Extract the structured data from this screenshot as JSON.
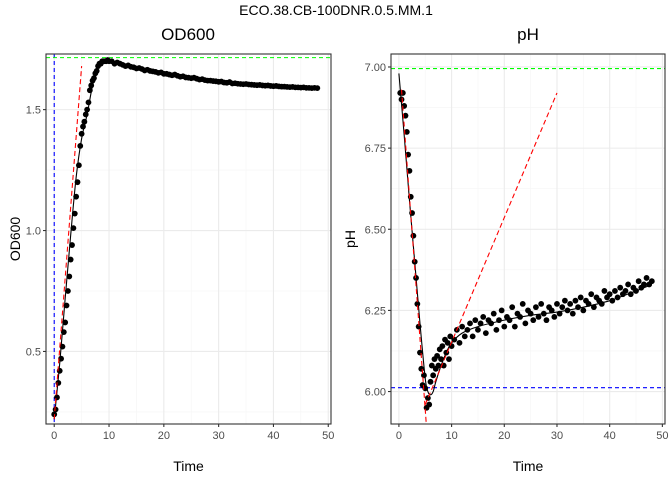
{
  "title": "ECO.38.CB-100DNR.0.5.MM.1",
  "colors": {
    "points": "#000000",
    "fit": "#000000",
    "tangent": "#ff0000",
    "hline_max": "#00ff00",
    "ref_line": "#0000ff",
    "grid_major": "#ebebeb",
    "grid_minor": "#f5f5f5",
    "panel_border": "#333333"
  },
  "chart_data": [
    {
      "type": "scatter",
      "title": "OD600",
      "xlabel": "Time",
      "ylabel": "OD600",
      "xlim": [
        -1.5,
        50.5
      ],
      "ylim": [
        0.2,
        1.73
      ],
      "xticks": [
        0,
        10,
        20,
        30,
        40,
        50
      ],
      "xtick_labels": [
        "0",
        "10",
        "20",
        "30",
        "40",
        "50"
      ],
      "yticks": [
        0.5,
        1.0,
        1.5
      ],
      "ytick_labels": [
        "0.5",
        "1.0",
        "1.5"
      ],
      "grid": true,
      "hline_max": 1.715,
      "vline": 0,
      "tangent_line": {
        "x": [
          0,
          5
        ],
        "y": [
          0.22,
          1.68
        ]
      },
      "fit_curve": {
        "x": [
          0,
          1,
          2,
          3,
          4,
          5,
          6,
          7,
          8,
          9,
          10,
          12,
          15,
          20,
          25,
          30,
          35,
          40,
          45,
          48
        ],
        "y": [
          0.22,
          0.45,
          0.72,
          0.98,
          1.22,
          1.38,
          1.48,
          1.6,
          1.67,
          1.695,
          1.7,
          1.69,
          1.675,
          1.65,
          1.63,
          1.615,
          1.605,
          1.6,
          1.595,
          1.59
        ]
      },
      "series": [
        {
          "x": [
            0,
            0.25,
            0.5,
            0.75,
            1.0,
            1.25,
            1.5,
            1.75,
            2.0,
            2.25,
            2.5,
            2.75,
            3.0,
            3.25,
            3.5,
            3.75,
            4.0,
            4.25,
            4.5,
            4.75,
            5.0,
            5.25,
            5.5,
            5.75,
            6.0,
            6.25,
            6.5,
            6.75,
            7.0,
            7.25,
            7.5,
            7.75,
            8.0,
            8.25,
            8.5,
            8.75,
            9.0,
            9.25,
            9.5,
            9.75,
            10.0,
            10.5,
            11.0,
            11.5,
            12.0,
            12.5,
            13.0,
            13.5,
            14.0,
            14.5,
            15.0,
            15.5,
            16.0,
            16.5,
            17.0,
            17.5,
            18.0,
            18.5,
            19.0,
            19.5,
            20.0,
            20.5,
            21.0,
            21.5,
            22.0,
            22.5,
            23.0,
            23.5,
            24.0,
            24.5,
            25.0,
            25.5,
            26.0,
            26.5,
            27.0,
            27.5,
            28.0,
            28.5,
            29.0,
            29.5,
            30.0,
            30.5,
            31.0,
            31.5,
            32.0,
            32.5,
            33.0,
            33.5,
            34.0,
            34.5,
            35.0,
            35.5,
            36.0,
            36.5,
            37.0,
            37.5,
            38.0,
            38.5,
            39.0,
            39.5,
            40.0,
            40.5,
            41.0,
            41.5,
            42.0,
            42.5,
            43.0,
            43.5,
            44.0,
            44.5,
            45.0,
            45.5,
            46.0,
            46.5,
            47.0,
            47.5,
            48.0
          ],
          "y": [
            0.24,
            0.26,
            0.31,
            0.37,
            0.42,
            0.47,
            0.52,
            0.58,
            0.62,
            0.69,
            0.75,
            0.81,
            0.88,
            0.94,
            1.01,
            1.07,
            1.14,
            1.2,
            1.27,
            1.35,
            1.4,
            1.43,
            1.45,
            1.48,
            1.5,
            1.53,
            1.58,
            1.6,
            1.62,
            1.63,
            1.65,
            1.66,
            1.68,
            1.69,
            1.69,
            1.7,
            1.7,
            1.7,
            1.7,
            1.705,
            1.7,
            1.7,
            1.69,
            1.695,
            1.69,
            1.685,
            1.68,
            1.683,
            1.677,
            1.675,
            1.67,
            1.672,
            1.668,
            1.662,
            1.665,
            1.66,
            1.658,
            1.656,
            1.652,
            1.654,
            1.648,
            1.648,
            1.645,
            1.642,
            1.645,
            1.64,
            1.636,
            1.638,
            1.633,
            1.632,
            1.63,
            1.632,
            1.628,
            1.624,
            1.626,
            1.622,
            1.62,
            1.62,
            1.618,
            1.617,
            1.615,
            1.616,
            1.612,
            1.611,
            1.614,
            1.608,
            1.609,
            1.607,
            1.606,
            1.605,
            1.606,
            1.604,
            1.603,
            1.602,
            1.601,
            1.602,
            1.6,
            1.599,
            1.6,
            1.598,
            1.597,
            1.598,
            1.596,
            1.595,
            1.595,
            1.594,
            1.593,
            1.594,
            1.592,
            1.592,
            1.591,
            1.592,
            1.59,
            1.59,
            1.589,
            1.59,
            1.589
          ]
        }
      ]
    },
    {
      "type": "scatter",
      "title": "pH",
      "xlabel": "Time",
      "ylabel": "pH",
      "xlim": [
        -1.5,
        50.5
      ],
      "ylim": [
        5.9,
        7.04
      ],
      "xticks": [
        0,
        10,
        20,
        30,
        40,
        50
      ],
      "xtick_labels": [
        "0",
        "10",
        "20",
        "30",
        "40",
        "50"
      ],
      "yticks": [
        6.0,
        6.25,
        6.5,
        6.75,
        7.0
      ],
      "ytick_labels": [
        "6.00",
        "6.25",
        "6.50",
        "6.75",
        "7.00"
      ],
      "grid": true,
      "hline_max": 6.995,
      "hline_min": 6.012,
      "tangent_line_1": {
        "x": [
          0.5,
          5.2
        ],
        "y": [
          6.93,
          5.9
        ]
      },
      "tangent_line_2": {
        "x": [
          5,
          30
        ],
        "y": [
          5.96,
          6.92
        ]
      },
      "fit_curve": {
        "x": [
          0,
          1,
          2,
          3,
          4,
          5,
          5.5,
          6,
          6.5,
          7,
          8,
          9,
          10,
          12,
          15,
          20,
          25,
          30,
          35,
          40,
          45,
          48
        ],
        "y": [
          6.98,
          6.79,
          6.59,
          6.4,
          6.21,
          6.04,
          6.0,
          5.99,
          6.0,
          6.03,
          6.08,
          6.12,
          6.15,
          6.18,
          6.2,
          6.22,
          6.235,
          6.245,
          6.26,
          6.28,
          6.31,
          6.33
        ]
      },
      "series": [
        {
          "x": [
            0.25,
            0.5,
            0.75,
            1.0,
            1.25,
            1.5,
            1.75,
            2.0,
            2.25,
            2.5,
            2.75,
            3.0,
            3.25,
            3.5,
            3.75,
            4.0,
            4.25,
            4.5,
            4.75,
            5.0,
            5.25,
            5.5,
            5.75,
            6.0,
            6.25,
            6.5,
            6.75,
            7.0,
            7.25,
            7.5,
            7.75,
            8.0,
            8.25,
            8.5,
            8.75,
            9.0,
            9.25,
            9.5,
            9.75,
            10.0,
            10.5,
            11.0,
            11.5,
            12.0,
            12.5,
            13.0,
            13.5,
            14.0,
            14.5,
            15.0,
            15.5,
            16.0,
            16.5,
            17.0,
            17.5,
            18.0,
            18.5,
            19.0,
            19.5,
            20.0,
            20.5,
            21.0,
            21.5,
            22.0,
            22.5,
            23.0,
            23.5,
            24.0,
            24.5,
            25.0,
            25.5,
            26.0,
            26.5,
            27.0,
            27.5,
            28.0,
            28.5,
            29.0,
            29.5,
            30.0,
            30.5,
            31.0,
            31.5,
            32.0,
            32.5,
            33.0,
            33.5,
            34.0,
            34.5,
            35.0,
            35.5,
            36.0,
            36.5,
            37.0,
            37.5,
            38.0,
            38.5,
            39.0,
            39.5,
            40.0,
            40.5,
            41.0,
            41.5,
            42.0,
            42.5,
            43.0,
            43.5,
            44.0,
            44.5,
            45.0,
            45.5,
            46.0,
            46.5,
            47.0,
            47.5,
            48.0
          ],
          "y": [
            6.92,
            6.9,
            6.92,
            6.88,
            6.85,
            6.8,
            6.73,
            6.68,
            6.6,
            6.55,
            6.48,
            6.4,
            6.35,
            6.27,
            6.2,
            6.12,
            6.07,
            6.02,
            6.05,
            6.01,
            5.95,
            5.98,
            5.96,
            6.03,
            6.08,
            6.05,
            6.1,
            6.07,
            6.11,
            6.08,
            6.13,
            6.1,
            6.14,
            6.08,
            6.16,
            6.12,
            6.15,
            6.1,
            6.17,
            6.14,
            6.16,
            6.19,
            6.15,
            6.2,
            6.17,
            6.19,
            6.21,
            6.17,
            6.22,
            6.19,
            6.21,
            6.23,
            6.18,
            6.22,
            6.21,
            6.24,
            6.19,
            6.22,
            6.25,
            6.2,
            6.23,
            6.22,
            6.26,
            6.2,
            6.24,
            6.23,
            6.27,
            6.21,
            6.25,
            6.24,
            6.22,
            6.26,
            6.23,
            6.27,
            6.24,
            6.22,
            6.26,
            6.25,
            6.23,
            6.27,
            6.24,
            6.26,
            6.28,
            6.25,
            6.27,
            6.24,
            6.28,
            6.26,
            6.29,
            6.25,
            6.28,
            6.27,
            6.3,
            6.26,
            6.29,
            6.28,
            6.27,
            6.31,
            6.29,
            6.3,
            6.28,
            6.31,
            6.29,
            6.32,
            6.3,
            6.31,
            6.33,
            6.3,
            6.32,
            6.31,
            6.34,
            6.32,
            6.33,
            6.35,
            6.33,
            6.34
          ]
        }
      ]
    }
  ]
}
